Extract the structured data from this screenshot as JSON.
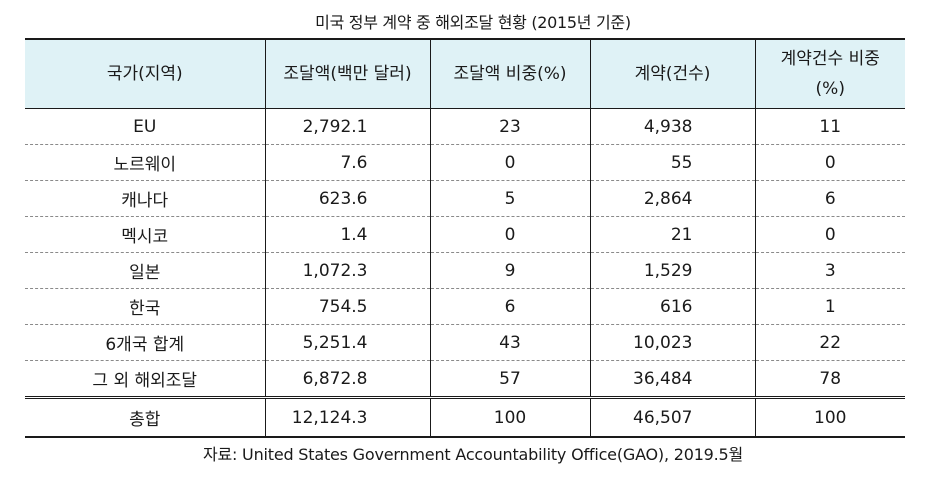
{
  "title": "미국 정부 계약 중 해외조달 현황 (2015년 기준)",
  "headers": {
    "region": "국가(지역)",
    "amount": "조달액(백만 달러)",
    "amount_share": "조달액 비중(%)",
    "contracts": "계약(건수)",
    "contract_share_line1": "계약건수 비중",
    "contract_share_line2": "(%)"
  },
  "rows": [
    {
      "region": "EU",
      "amount": "2,792.1",
      "amount_share": "23",
      "contracts": "4,938",
      "contract_share": "11"
    },
    {
      "region": "노르웨이",
      "amount": "7.6",
      "amount_share": "0",
      "contracts": "55",
      "contract_share": "0"
    },
    {
      "region": "캐나다",
      "amount": "623.6",
      "amount_share": "5",
      "contracts": "2,864",
      "contract_share": "6"
    },
    {
      "region": "멕시코",
      "amount": "1.4",
      "amount_share": "0",
      "contracts": "21",
      "contract_share": "0"
    },
    {
      "region": "일본",
      "amount": "1,072.3",
      "amount_share": "9",
      "contracts": "1,529",
      "contract_share": "3"
    },
    {
      "region": "한국",
      "amount": "754.5",
      "amount_share": "6",
      "contracts": "616",
      "contract_share": "1"
    },
    {
      "region": "6개국 합계",
      "amount": "5,251.4",
      "amount_share": "43",
      "contracts": "10,023",
      "contract_share": "22"
    },
    {
      "region": "그 외 해외조달",
      "amount": "6,872.8",
      "amount_share": "57",
      "contracts": "36,484",
      "contract_share": "78"
    }
  ],
  "total": {
    "region": "총합",
    "amount": "12,124.3",
    "amount_share": "100",
    "contracts": "46,507",
    "contract_share": "100"
  },
  "source": "자료: United States Government Accountability Office(GAO), 2019.5월"
}
